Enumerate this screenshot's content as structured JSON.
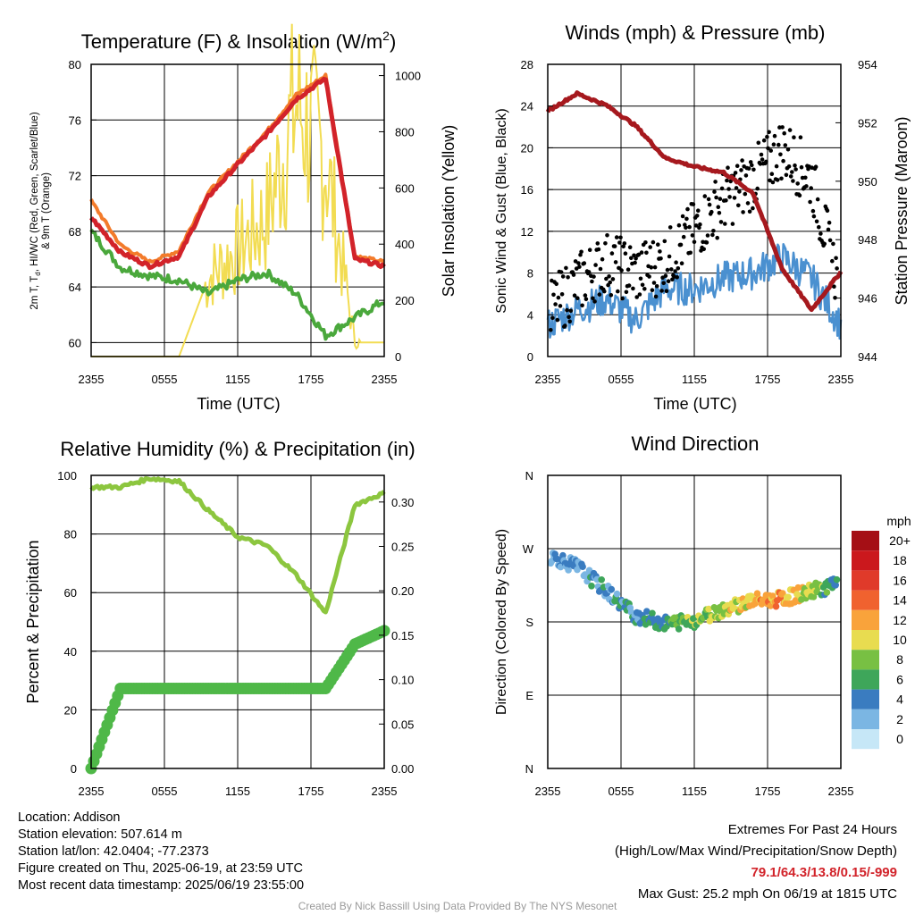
{
  "panels": {
    "temp": {
      "title_main": "Temperature (F) & Insolation (W/m",
      "title_sup": "2",
      "title_end": ")",
      "y_left_label_line1": "2m T, T",
      "y_left_label_sub": "d",
      "y_left_label_line1_end": ", HI/WC (Red, Green, Scarlet/Blue)",
      "y_left_label_line2": "& 9m T (Orange)",
      "y_right_label": "Solar Insolation (Yellow)",
      "x_label": "Time (UTC)",
      "x_ticks": [
        "2355",
        "0555",
        "1155",
        "1755",
        "2355"
      ],
      "y_left_ticks": [
        "60",
        "64",
        "68",
        "72",
        "76",
        "80"
      ],
      "y_right_ticks": [
        "0",
        "200",
        "400",
        "600",
        "800",
        "1000"
      ]
    },
    "wind": {
      "title": "Winds (mph) & Pressure (mb)",
      "y_left_label": "Sonic Wind & Gust (Blue, Black)",
      "y_right_label": "Station Pressure (Maroon)",
      "x_label": "Time (UTC)",
      "x_ticks": [
        "2355",
        "0555",
        "1155",
        "1755",
        "2355"
      ],
      "y_left_ticks": [
        "0",
        "4",
        "8",
        "12",
        "16",
        "20",
        "24",
        "28"
      ],
      "y_right_ticks": [
        "944",
        "946",
        "948",
        "950",
        "952",
        "954"
      ]
    },
    "rh": {
      "title": "Relative Humidity (%) & Precipitation (in)",
      "y_left_label": "Percent & Precipitation",
      "x_ticks": [
        "2355",
        "0555",
        "1155",
        "1755",
        "2355"
      ],
      "y_left_ticks": [
        "0",
        "20",
        "40",
        "60",
        "80",
        "100"
      ],
      "y_right_ticks": [
        "0.00",
        "0.05",
        "0.10",
        "0.15",
        "0.20",
        "0.25",
        "0.30"
      ]
    },
    "dir": {
      "title": "Wind Direction",
      "y_label": "Direction (Colored By Speed)",
      "x_ticks": [
        "2355",
        "0555",
        "1155",
        "1755",
        "2355"
      ],
      "y_ticks": [
        "N",
        "E",
        "S",
        "W",
        "N"
      ],
      "legend_title": "mph",
      "legend_labels": [
        "20+",
        "18",
        "16",
        "14",
        "12",
        "10",
        "8",
        "6",
        "4",
        "2",
        "0"
      ],
      "legend_colors": [
        "#a50f15",
        "#cb181d",
        "#e03a2a",
        "#f0622f",
        "#f9a33b",
        "#e8dc50",
        "#78c043",
        "#3ea65a",
        "#3a7cc0",
        "#7bb6e3",
        "#c6e7f7"
      ]
    }
  },
  "chart_data": [
    {
      "type": "line",
      "title": "Temperature (F) & Insolation (W/m2)",
      "xlabel": "Time (UTC)",
      "ylabel": "2m T, Td, HI/WC (Red, Green, Scarlet/Blue) & 9m T (Orange)",
      "y2label": "Solar Insolation (Yellow)",
      "x": [
        "2355",
        "0355",
        "0555",
        "0855",
        "1155",
        "1455",
        "1655",
        "1755",
        "1955",
        "2155",
        "2355"
      ],
      "ylim": [
        59,
        80
      ],
      "y2lim": [
        0,
        1000
      ],
      "grid": true,
      "series": [
        {
          "name": "2m T (Red)",
          "color": "#d2232a",
          "values": [
            69,
            66.5,
            65.5,
            66.2,
            70.5,
            72.8,
            75,
            77.5,
            79,
            66,
            65.5
          ]
        },
        {
          "name": "Td (Green)",
          "color": "#4aa83c",
          "values": [
            68,
            65.4,
            64.8,
            64.5,
            63.5,
            64.5,
            65,
            63.5,
            60.5,
            61.8,
            63
          ]
        },
        {
          "name": "9m T (Orange)",
          "color": "#f37b2b",
          "values": [
            70.2,
            67,
            65.8,
            66.6,
            70.8,
            73,
            75.2,
            77.8,
            79.2,
            66.2,
            65.8
          ]
        },
        {
          "name": "Solar Insolation (Yellow)",
          "color": "#f2dc52",
          "axis": "right",
          "values": [
            0,
            0,
            0,
            0,
            280,
            380,
            500,
            900,
            700,
            50,
            50
          ]
        }
      ]
    },
    {
      "type": "line",
      "title": "Winds (mph) & Pressure (mb)",
      "xlabel": "Time (UTC)",
      "ylabel": "Sonic Wind & Gust (Blue, Black)",
      "y2label": "Station Pressure (Maroon)",
      "x": [
        "2355",
        "0155",
        "0355",
        "0555",
        "0855",
        "1155",
        "1455",
        "1755",
        "1955",
        "2155",
        "2355"
      ],
      "ylim": [
        0,
        28
      ],
      "y2lim": [
        944,
        954
      ],
      "grid": true,
      "series": [
        {
          "name": "Sonic Wind (Blue)",
          "color": "#4a90d0",
          "values": [
            3,
            4.5,
            5.5,
            3.5,
            6.5,
            6.5,
            7.5,
            8,
            9.5,
            7.5,
            3
          ]
        },
        {
          "name": "Gust (Black)",
          "color": "#000000",
          "style": "points",
          "values": [
            4,
            7,
            9,
            8,
            9,
            12,
            15,
            17,
            20,
            17,
            6
          ]
        },
        {
          "name": "Station Pressure (Maroon)",
          "color": "#a6191e",
          "axis": "right",
          "values": [
            952.4,
            953,
            952.6,
            951.9,
            950.8,
            950.5,
            950.3,
            949.6,
            947,
            945.6,
            946.9
          ]
        }
      ]
    },
    {
      "type": "line",
      "title": "Relative Humidity (%) & Precipitation (in)",
      "ylabel": "Percent & Precipitation",
      "x": [
        "2355",
        "0055",
        "0555",
        "0855",
        "1155",
        "1455",
        "1655",
        "1855",
        "2055",
        "2155",
        "2355"
      ],
      "ylim": [
        0,
        100
      ],
      "y2lim": [
        0,
        0.33
      ],
      "grid": true,
      "series": [
        {
          "name": "Relative Humidity",
          "color": "#8cc63f",
          "values": [
            96,
            96,
            99,
            98,
            88,
            79,
            76,
            66,
            53,
            90,
            94
          ]
        },
        {
          "name": "Precipitation",
          "color": "#4fb848",
          "axis": "right",
          "values": [
            0,
            0.09,
            0.09,
            0.09,
            0.09,
            0.09,
            0.09,
            0.09,
            0.09,
            0.14,
            0.155
          ]
        }
      ]
    },
    {
      "type": "scatter",
      "title": "Wind Direction",
      "ylabel": "Direction (Colored By Speed)",
      "x": [
        "2355",
        "0155",
        "0355",
        "0555",
        "0855",
        "1155",
        "1455",
        "1755",
        "1955",
        "2155",
        "2355"
      ],
      "y_categories": [
        "N",
        "E",
        "S",
        "W",
        "N"
      ],
      "ylim": [
        0,
        360
      ],
      "legend_title": "mph",
      "points_deg": [
        262,
        248,
        218,
        188,
        178,
        182,
        196,
        206,
        208,
        218,
        228
      ],
      "points_speed": [
        3,
        3,
        4,
        4,
        6,
        8,
        9,
        11,
        12,
        9,
        4
      ]
    }
  ],
  "footer": {
    "location": "Location: Addison",
    "elevation": "Station elevation: 507.614 m",
    "latlon": "Station lat/lon: 42.0404; -77.2373",
    "created": "Figure created on Thu, 2025-06-19, at 23:59 UTC",
    "recent": "Most recent data timestamp: 2025/06/19 23:55:00",
    "extremes_title": "Extremes For Past 24 Hours",
    "extremes_sub": "(High/Low/Max Wind/Precipitation/Snow Depth)",
    "extremes_values": "79.1/64.3/13.8/0.15/-999",
    "max_gust": "Max Gust: 25.2 mph On 06/19 at 1815 UTC",
    "credit": "Created By Nick Bassill Using Data Provided By The NYS Mesonet"
  }
}
